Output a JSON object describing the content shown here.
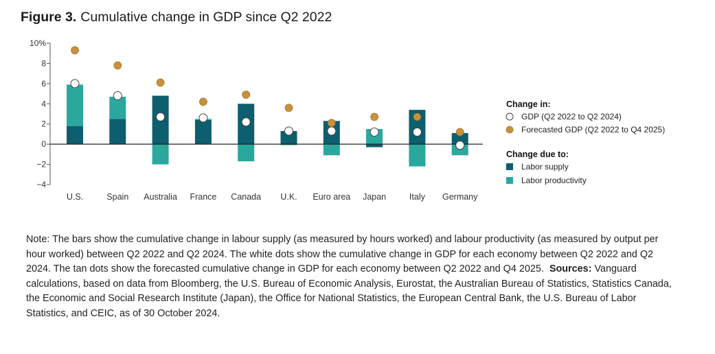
{
  "figure": {
    "label": "Figure 3.",
    "title": "Cumulative change in GDP since Q2 2022"
  },
  "chart_data": {
    "type": "bar",
    "stacked": true,
    "categories": [
      "U.S.",
      "Spain",
      "Australia",
      "France",
      "Canada",
      "U.K.",
      "Euro area",
      "Japan",
      "Italy",
      "Germany"
    ],
    "ylim": [
      -4,
      10
    ],
    "yticks": [
      -4,
      -2,
      0,
      2,
      4,
      6,
      8,
      10
    ],
    "ytick_labels": [
      "−4",
      "−2",
      "0",
      "2",
      "4",
      "6",
      "8",
      "10%"
    ],
    "series": [
      {
        "name": "Labor supply",
        "color": "#0d5e6e",
        "values": [
          1.8,
          2.5,
          4.8,
          2.4,
          4.0,
          1.3,
          2.3,
          -0.3,
          3.4,
          1.1
        ]
      },
      {
        "name": "Labor productivity",
        "color": "#2aa89e",
        "values": [
          4.1,
          2.2,
          -2.0,
          0.1,
          -1.7,
          -0.1,
          -1.1,
          1.5,
          -2.2,
          -1.1
        ]
      }
    ],
    "points": [
      {
        "name": "GDP (Q2 2022 to Q2 2024)",
        "style": "white-dot",
        "values": [
          6.0,
          4.8,
          2.7,
          2.6,
          2.2,
          1.3,
          1.3,
          1.2,
          1.2,
          -0.1
        ]
      },
      {
        "name": "Forecasted GDP (Q2 2022 to Q4 2025)",
        "style": "tan-dot",
        "color": "#c8913a",
        "values": [
          9.3,
          7.8,
          6.1,
          4.2,
          4.9,
          3.6,
          2.1,
          2.7,
          2.7,
          1.2
        ]
      }
    ],
    "legend": {
      "position": "right",
      "heading_points": "Change in:",
      "heading_bars": "Change due to:"
    }
  },
  "note": {
    "text": "Note: The bars show the cumulative change in labour supply (as measured by hours worked) and labour productivity (as measured by output per hour worked) between Q2 2022 and Q2 2024. The white dots show the cumulative change in GDP for each economy between Q2 2022 and Q2 2024. The tan dots show the forecasted cumulative change in GDP for each economy between Q2 2022 and Q4 2025.",
    "sources_label": "Sources:",
    "sources_text": "Vanguard calculations, based on data from Bloomberg, the U.S. Bureau of Economic Analysis, Eurostat, the Australian Bureau of Statistics, Statistics Canada, the Economic and Social Research Institute (Japan), the Office for National Statistics, the European Central Bank, the U.S. Bureau of Labor Statistics, and CEIC, as of 30 October 2024."
  }
}
